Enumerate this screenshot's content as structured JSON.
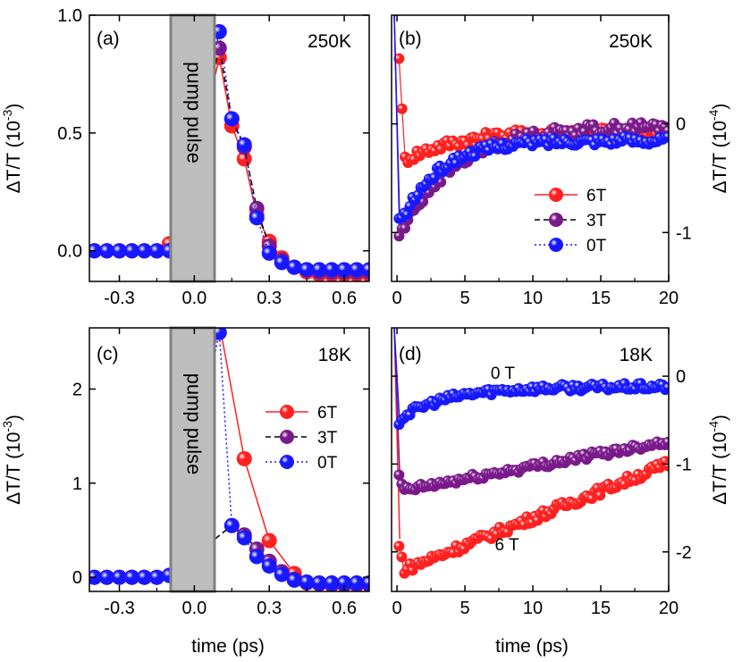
{
  "chart_data": [
    {
      "panel": "(a)",
      "type": "scatter",
      "annotation": "250K",
      "box_label": "pump pulse",
      "ylabel_main": "ΔT/T (10",
      "ylabel_exp": "-3",
      "ylabel_close": ")",
      "xlim": [
        -0.42,
        0.7
      ],
      "ylim": [
        -0.13,
        1.0
      ],
      "xticks": [
        -0.3,
        0.0,
        0.3,
        0.6
      ],
      "xtick_labels": [
        "-0.3",
        "0.0",
        "0.3",
        "0.6"
      ],
      "yticks": [
        0.0,
        0.5,
        1.0
      ],
      "ytick_labels": [
        "0.0",
        "0.5",
        "1.0"
      ],
      "pulse": [
        -0.08,
        0.1
      ],
      "series": [
        {
          "name": "6T",
          "color": "#ff2020",
          "dash": "",
          "x": [
            -0.4,
            -0.35,
            -0.3,
            -0.25,
            -0.2,
            -0.15,
            -0.1,
            -0.05,
            0.1,
            0.15,
            0.2,
            0.25,
            0.3,
            0.35,
            0.4,
            0.45,
            0.5,
            0.55,
            0.6,
            0.65,
            0.7
          ],
          "y": [
            0,
            0,
            0,
            0,
            0,
            0,
            0.03,
            0.12,
            0.82,
            0.53,
            0.39,
            0.15,
            0.04,
            -0.03,
            -0.07,
            -0.09,
            -0.1,
            -0.1,
            -0.1,
            -0.1,
            -0.1
          ]
        },
        {
          "name": "3T",
          "color": "#7a1a8a",
          "dash": "6,4",
          "x": [
            -0.4,
            -0.35,
            -0.3,
            -0.25,
            -0.2,
            -0.15,
            -0.1,
            0.1,
            0.15,
            0.2,
            0.25,
            0.3,
            0.35,
            0.4,
            0.45,
            0.5,
            0.55,
            0.6,
            0.65,
            0.7
          ],
          "y": [
            0,
            0,
            0,
            0,
            0,
            0,
            0.0,
            0.86,
            0.56,
            0.44,
            0.18,
            0.02,
            -0.04,
            -0.07,
            -0.08,
            -0.09,
            -0.09,
            -0.09,
            -0.09,
            -0.09
          ]
        },
        {
          "name": "0T",
          "color": "#1818ff",
          "dash": "2,3",
          "x": [
            -0.4,
            -0.35,
            -0.3,
            -0.25,
            -0.2,
            -0.15,
            -0.1,
            0.1,
            0.15,
            0.2,
            0.25,
            0.3,
            0.35,
            0.4,
            0.45,
            0.5,
            0.55,
            0.6,
            0.65,
            0.7
          ],
          "y": [
            0,
            0,
            0,
            0,
            0,
            0,
            0.0,
            0.93,
            0.56,
            0.45,
            0.14,
            -0.01,
            -0.05,
            -0.07,
            -0.08,
            -0.08,
            -0.08,
            -0.08,
            -0.08,
            -0.08
          ]
        }
      ]
    },
    {
      "panel": "(b)",
      "type": "scatter",
      "annotation": "250K",
      "ylabel_main": "ΔT/T (10",
      "ylabel_exp": "-4",
      "ylabel_close": ")",
      "xlim": [
        -0.4,
        20
      ],
      "ylim": [
        -1.45,
        1.0
      ],
      "xticks": [
        0,
        5,
        10,
        15,
        20
      ],
      "xtick_labels": [
        "0",
        "5",
        "10",
        "15",
        "20"
      ],
      "yticks": [
        -1,
        0
      ],
      "ytick_labels": [
        "-1",
        "0"
      ],
      "legend": {
        "entries": [
          "6T",
          "3T",
          "0T"
        ],
        "colors": [
          "#ff2020",
          "#7a1a8a",
          "#1818ff"
        ],
        "dashes": [
          "",
          "6,4",
          "2,3"
        ]
      },
      "series": [
        {
          "name": "6T",
          "color": "#ff2020",
          "start": 1.0,
          "level": -0.33,
          "tau": 4.2,
          "plateau": -0.06,
          "noise": 0.05,
          "step": 0.22
        },
        {
          "name": "3T",
          "color": "#7a1a8a",
          "start": -1.05,
          "level": -0.95,
          "tau": 4.0,
          "plateau": -0.02,
          "noise": 0.05,
          "step": 0.22
        },
        {
          "name": "0T",
          "color": "#1818ff",
          "start": -0.9,
          "level": -0.85,
          "tau": 2.8,
          "plateau": -0.15,
          "noise": 0.04,
          "step": 0.2
        }
      ]
    },
    {
      "panel": "(c)",
      "type": "scatter",
      "annotation": "18K",
      "box_label": "pump pulse",
      "ylabel_main": "ΔT/T (10",
      "ylabel_exp": "-3",
      "ylabel_close": ")",
      "xlim": [
        -0.42,
        0.7
      ],
      "ylim": [
        -0.15,
        2.65
      ],
      "xticks": [
        -0.3,
        0.0,
        0.3,
        0.6
      ],
      "xtick_labels": [
        "-0.3",
        "0.0",
        "0.3",
        "0.6"
      ],
      "yticks": [
        0,
        1,
        2
      ],
      "ytick_labels": [
        "0",
        "1",
        "2"
      ],
      "pulse": [
        -0.08,
        0.1
      ],
      "legend": {
        "entries": [
          "6T",
          "3T",
          "0T"
        ],
        "colors": [
          "#ff2020",
          "#7a1a8a",
          "#1818ff"
        ],
        "dashes": [
          "",
          "6,4",
          "2,3"
        ]
      },
      "series": [
        {
          "name": "6T",
          "color": "#ff2020",
          "dash": "",
          "x": [
            -0.4,
            -0.35,
            -0.3,
            -0.25,
            -0.2,
            -0.15,
            -0.1,
            0.1,
            0.2,
            0.3,
            0.4,
            0.5,
            0.6,
            0.7
          ],
          "y": [
            0,
            0,
            0,
            0,
            0,
            0,
            0.02,
            2.7,
            1.26,
            0.39,
            0.04,
            -0.07,
            -0.07,
            -0.07
          ]
        },
        {
          "name": "3T",
          "color": "#7a1a8a",
          "dash": "6,4",
          "x": [
            -0.4,
            -0.35,
            -0.3,
            -0.25,
            -0.2,
            -0.15,
            -0.1,
            0.15,
            0.2,
            0.25,
            0.3,
            0.35,
            0.4,
            0.45,
            0.5,
            0.55,
            0.6,
            0.65,
            0.7
          ],
          "y": [
            0,
            0,
            0,
            0,
            0,
            0,
            0.02,
            0.55,
            0.45,
            0.3,
            0.17,
            0.06,
            -0.02,
            -0.06,
            -0.07,
            -0.08,
            -0.08,
            -0.08,
            -0.08
          ]
        },
        {
          "name": "0T",
          "color": "#1818ff",
          "dash": "2,3",
          "x": [
            -0.4,
            -0.35,
            -0.3,
            -0.25,
            -0.2,
            -0.15,
            -0.1,
            0.1,
            0.15,
            0.2,
            0.25,
            0.3,
            0.35,
            0.4,
            0.45,
            0.5,
            0.55,
            0.6,
            0.65,
            0.7
          ],
          "y": [
            0,
            0,
            0,
            0,
            0,
            0,
            0.02,
            2.6,
            0.55,
            0.42,
            0.22,
            0.12,
            0.03,
            -0.03,
            -0.05,
            -0.06,
            -0.06,
            -0.06,
            -0.06,
            -0.06
          ]
        }
      ]
    },
    {
      "panel": "(d)",
      "type": "scatter",
      "annotation": "18K",
      "ylabel_main": "ΔT/T (10",
      "ylabel_exp": "-4",
      "ylabel_close": ")",
      "xlim": [
        -0.4,
        20
      ],
      "ylim": [
        -2.45,
        0.55
      ],
      "xticks": [
        0,
        5,
        10,
        15,
        20
      ],
      "xtick_labels": [
        "0",
        "5",
        "10",
        "15",
        "20"
      ],
      "yticks": [
        -2,
        -1,
        0
      ],
      "ytick_labels": [
        "-2",
        "-1",
        "0"
      ],
      "labels": [
        {
          "text": "0 T",
          "x": 6.9,
          "y": -0.03
        },
        {
          "text": "6 T",
          "x": 7.2,
          "y": -1.98
        }
      ],
      "series": [
        {
          "name": "6T",
          "color": "#ff2020",
          "start": -1.85,
          "level": -2.2,
          "slope": 0.062,
          "noise": 0.05,
          "step": 0.2
        },
        {
          "name": "3T",
          "color": "#7a1a8a",
          "start": -1.1,
          "level": -1.3,
          "slope": 0.029,
          "noise": 0.04,
          "step": 0.2
        },
        {
          "name": "0T",
          "color": "#1818ff",
          "start": -0.55,
          "level": -0.45,
          "tau": 3.5,
          "plateau": -0.12,
          "noise": 0.04,
          "step": 0.2
        }
      ]
    }
  ],
  "axes_text": {
    "xlabel_left": "time (ps)",
    "xlabel_right": "time (ps)"
  }
}
